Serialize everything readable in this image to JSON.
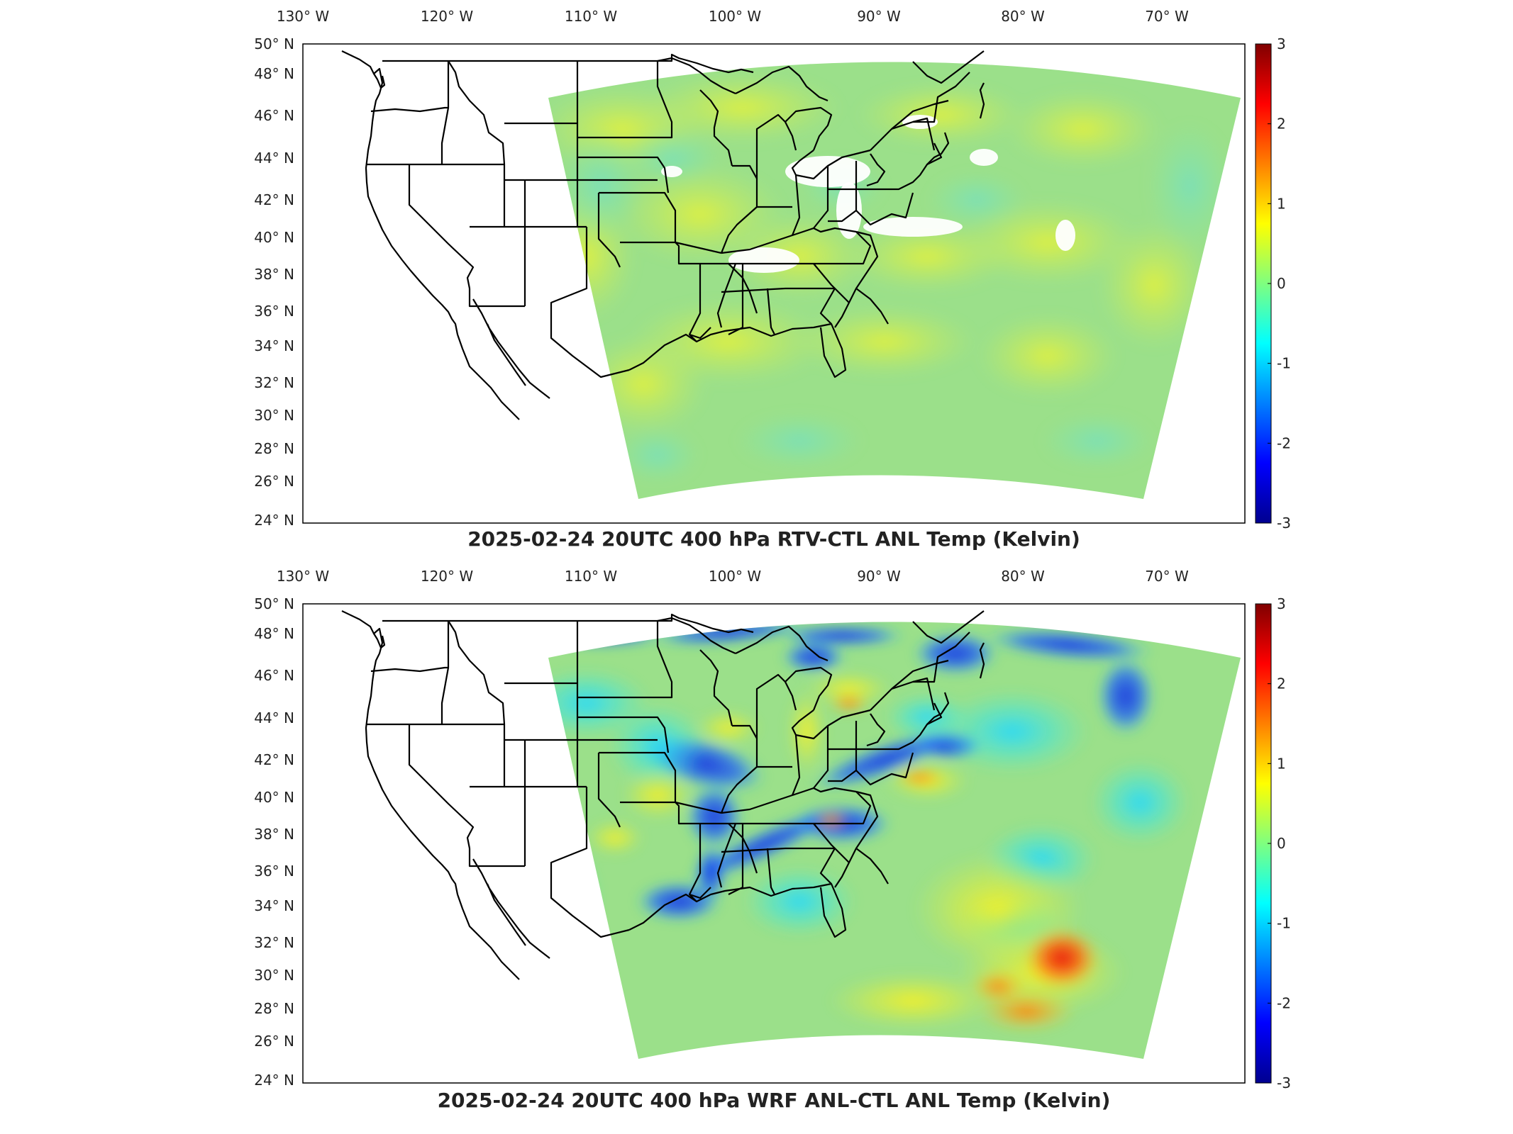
{
  "panels": [
    {
      "id": "top",
      "title": "2025-02-24 20UTC 400 hPa RTV-CTL ANL Temp (Kelvin)",
      "lon_ticks": [
        "130",
        "120",
        "110",
        "100",
        "90",
        "80",
        "70"
      ],
      "lon_suffix": "W",
      "lat_ticks": [
        "50",
        "48",
        "46",
        "44",
        "42",
        "40",
        "38",
        "36",
        "34",
        "32",
        "30",
        "28",
        "26",
        "24"
      ],
      "lat_suffix": "N",
      "colorbar_ticks": [
        "3",
        "2",
        "1",
        "0",
        "-1",
        "-2",
        "-3"
      ],
      "colorbar_range": [
        -3,
        3
      ],
      "field_style": "weak"
    },
    {
      "id": "bottom",
      "title": "2025-02-24 20UTC 400 hPa WRF ANL-CTL ANL Temp (Kelvin)",
      "lon_ticks": [
        "130",
        "120",
        "110",
        "100",
        "90",
        "80",
        "70"
      ],
      "lon_suffix": "W",
      "lat_ticks": [
        "50",
        "48",
        "46",
        "44",
        "42",
        "40",
        "38",
        "36",
        "34",
        "32",
        "30",
        "28",
        "26",
        "24"
      ],
      "lat_suffix": "N",
      "colorbar_ticks": [
        "3",
        "2",
        "1",
        "0",
        "-1",
        "-2",
        "-3"
      ],
      "colorbar_range": [
        -3,
        3
      ],
      "field_style": "strong"
    }
  ],
  "colormap": "jet",
  "colors": {
    "jet_low": "#00008f",
    "jet_mid": "#7fff7f",
    "jet_high": "#800000",
    "background_field": "#9be08a",
    "boundary_lines": "#000000",
    "title_text": "#222222"
  }
}
